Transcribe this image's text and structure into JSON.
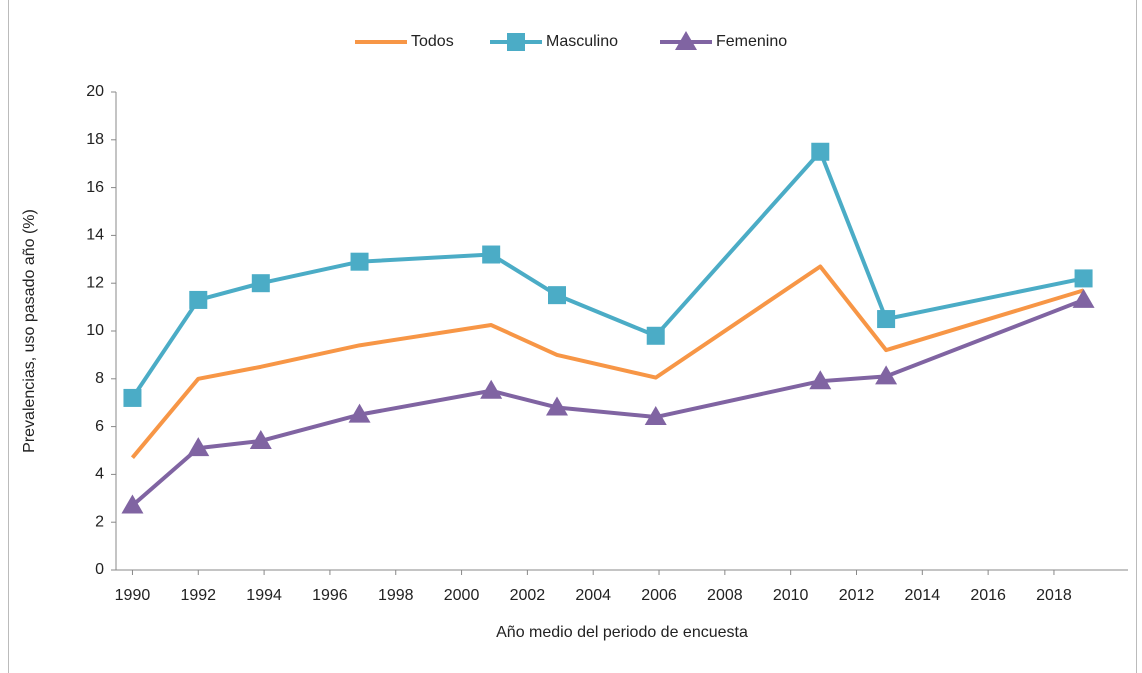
{
  "chart_data": {
    "type": "line",
    "x_label": "Año medio del periodo de encuesta",
    "y_label": "Prevalencias, uso pasado año (%)",
    "x": [
      1990,
      1992,
      1993.9,
      1996.9,
      2000.9,
      2002.9,
      2005.9,
      2010.9,
      2012.9,
      2018.9
    ],
    "series": [
      {
        "name": "Todos",
        "color": "#f79646",
        "marker": "none",
        "values": [
          4.7,
          8.0,
          8.5,
          9.4,
          10.25,
          9.0,
          8.05,
          12.7,
          9.2,
          11.7
        ]
      },
      {
        "name": "Masculino",
        "color": "#4bacc6",
        "marker": "square",
        "values": [
          7.2,
          11.3,
          12.0,
          12.9,
          13.2,
          11.5,
          9.8,
          17.5,
          10.5,
          12.2
        ]
      },
      {
        "name": "Femenino",
        "color": "#8064a2",
        "marker": "triangle",
        "values": [
          2.7,
          5.1,
          5.4,
          6.5,
          7.5,
          6.8,
          6.4,
          7.9,
          8.1,
          11.3
        ]
      }
    ],
    "xlim": [
      1989.5,
      2020.25
    ],
    "xticks": [
      1990,
      1992,
      1994,
      1996,
      1998,
      2000,
      2002,
      2004,
      2006,
      2008,
      2010,
      2012,
      2014,
      2016,
      2018
    ],
    "ylim": [
      0,
      20
    ],
    "yticks": [
      0,
      2,
      4,
      6,
      8,
      10,
      12,
      14,
      16,
      18,
      20
    ],
    "grid": false,
    "legend": "top"
  }
}
